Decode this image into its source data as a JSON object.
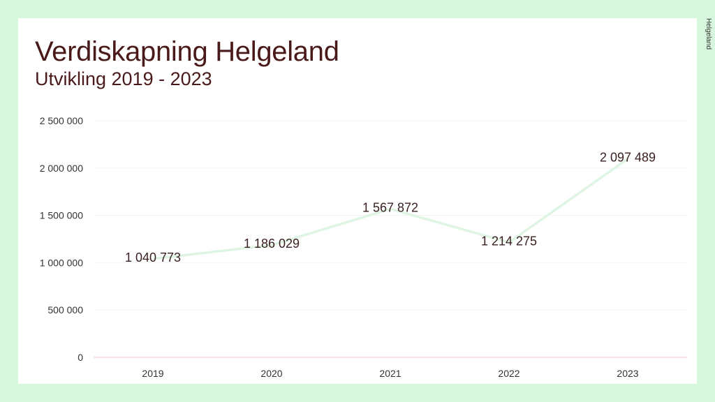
{
  "slide": {
    "title": "Verdiskapning Helgeland",
    "subtitle": "Utvikling 2019 - 2023",
    "logo_text": "Helgeland",
    "colors": {
      "page_bg": "#d6f7dd",
      "slide_bg": "#ffffff",
      "title": "#4a1a1a",
      "line": "#dff5e3",
      "axis": "#f2c9c9",
      "grid": "#f3f3f3"
    }
  },
  "chart_data": {
    "type": "line",
    "categories": [
      "2019",
      "2020",
      "2021",
      "2022",
      "2023"
    ],
    "series": [
      {
        "values": [
          1040773,
          1186029,
          1567872,
          1214275,
          2097489
        ]
      }
    ],
    "data_labels": [
      "1 040 773",
      "1 186 029",
      "1 567 872",
      "1 214 275",
      "2 097 489"
    ],
    "y_ticks": [
      0,
      500000,
      1000000,
      1500000,
      2000000,
      2500000
    ],
    "y_tick_labels": [
      "0",
      "500 000",
      "1 000 000",
      "1 500 000",
      "2 000 000",
      "2 500 000"
    ],
    "ylim": [
      0,
      2500000
    ],
    "grid": true,
    "legend": "none"
  }
}
